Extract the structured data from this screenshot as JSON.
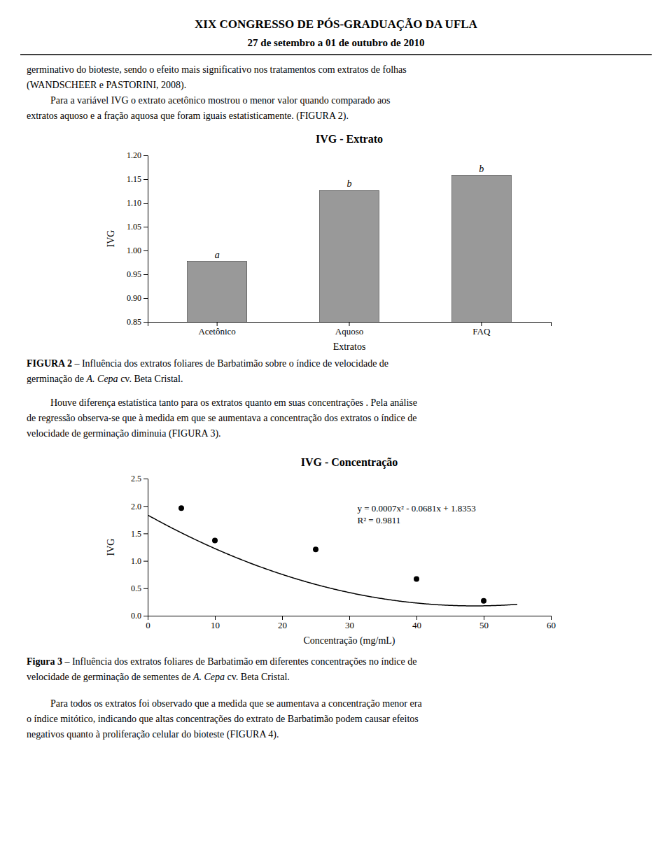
{
  "page": {
    "title": "XIX CONGRESSO DE PÓS-GRADUAÇÃO DA UFLA",
    "subtitle": "27 de setembro a 01 de outubro de 2010",
    "paragraphs": [
      {
        "continuation": true,
        "lines": [
          "germinativo do bioteste, sendo o efeito mais significativo nos tratamentos com extratos de folhas",
          "(WANDSCHEER e PASTORINI, 2008)."
        ]
      },
      {
        "lines": [
          "Para a variável IVG o extrato acetônico mostrou o menor valor quando comparado aos",
          "extratos aquoso e a fração aquosa que foram iguais estatisticamente. (FIGURA 2)."
        ]
      },
      {
        "lines": [
          "Houve diferença estatística tanto para os extratos quanto em suas concentrações . Pela análise",
          "de regressão observa-se que à medida em que se aumentava a concentração dos extratos o índice de",
          "velocidade de germinação diminuia (FIGURA 3)."
        ]
      },
      {
        "lines": [
          "Para todos os extratos foi observado que a medida que se aumentava a concentração menor era",
          "o índice mitótico, indicando que altas concentrações do extrato de Barbatimão podem causar efeitos",
          "negativos quanto à proliferação celular do bioteste (FIGURA 4)."
        ]
      }
    ],
    "captions": [
      {
        "lines": [
          [
            {
              "text": "FIGURA 2",
              "style": "bold"
            },
            {
              "text": " – Influência dos extratos foliares de Barbatimão sobre o índice de velocidade de",
              "style": "normal"
            }
          ],
          [
            {
              "text": "germinação de ",
              "style": "normal"
            },
            {
              "text": "A. Cepa",
              "style": "italic"
            },
            {
              "text": " cv. Beta Cristal.",
              "style": "normal"
            }
          ]
        ]
      },
      {
        "lines": [
          [
            {
              "text": "Figura 3",
              "style": "bold"
            },
            {
              "text": " – Influência dos extratos foliares de Barbatimão em diferentes concentrações no índice de",
              "style": "normal"
            }
          ],
          [
            {
              "text": "velocidade de germinação de sementes de ",
              "style": "normal"
            },
            {
              "text": "A. Cepa",
              "style": "italic"
            },
            {
              "text": " cv. Beta Cristal.",
              "style": "normal"
            }
          ]
        ]
      }
    ]
  },
  "chart_data": [
    {
      "type": "bar",
      "title": "IVG - Extrato",
      "categories": [
        "Acetônico",
        "Aquoso",
        "FAQ"
      ],
      "values": [
        0.977,
        1.126,
        1.158
      ],
      "annotations": [
        "a",
        "b",
        "b"
      ],
      "color": "#999999",
      "xlabel": "Extratos",
      "ylabel": "IVG",
      "ylim": [
        0.85,
        1.2
      ],
      "yticks": [
        0.85,
        {
          "value": 0.9,
          "label": "0.90"
        },
        0.95,
        {
          "value": 1.0,
          "label": "1.00"
        },
        1.05,
        {
          "value": 1.1,
          "label": "1.10"
        },
        1.15,
        {
          "value": 1.2,
          "label": "1.20"
        }
      ],
      "grid": false
    },
    {
      "type": "scatter",
      "title": "IVG - Concentração",
      "x": [
        5,
        10,
        25,
        40,
        50
      ],
      "values": [
        1.96,
        1.37,
        1.21,
        0.67,
        0.27
      ],
      "color": "#000000",
      "marker": "circle",
      "trendline": {
        "coefficients": [
          0.0007,
          -0.0681,
          1.8353
        ],
        "x_range": [
          0,
          55
        ]
      },
      "equation": "y = 0.0007x² - 0.0681x + 1.8353",
      "r2": "R² = 0.9811",
      "xlabel": "Concentração (mg/mL)",
      "ylabel": "IVG",
      "xlim": [
        0,
        60
      ],
      "ylim": [
        0,
        2.5
      ],
      "xticks": [
        0,
        10,
        20,
        30,
        40,
        50,
        60
      ],
      "yticks": [
        {
          "value": 0,
          "label": "0.0"
        },
        0.5,
        {
          "value": 1.0,
          "label": "1.0"
        },
        1.5,
        {
          "value": 2.0,
          "label": "2.0"
        },
        2.5
      ],
      "grid": false
    }
  ]
}
